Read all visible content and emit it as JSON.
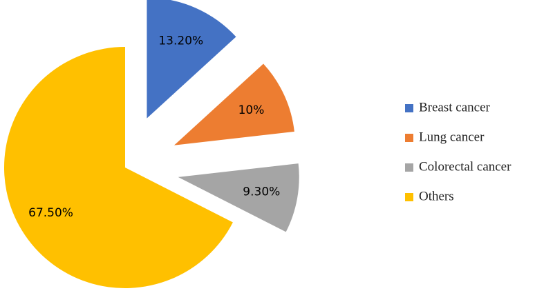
{
  "chart_data": {
    "type": "pie",
    "categories": [
      "Breast cancer",
      "Lung cancer",
      "Colorectal cancer",
      "Others"
    ],
    "values": [
      13.2,
      10,
      9.3,
      67.5
    ],
    "value_labels": [
      "13.20%",
      "10%",
      "9.30%",
      "67.50%"
    ],
    "colors": [
      "#4472c4",
      "#ed7d31",
      "#a5a5a5",
      "#ffc000"
    ],
    "legend": "right"
  }
}
